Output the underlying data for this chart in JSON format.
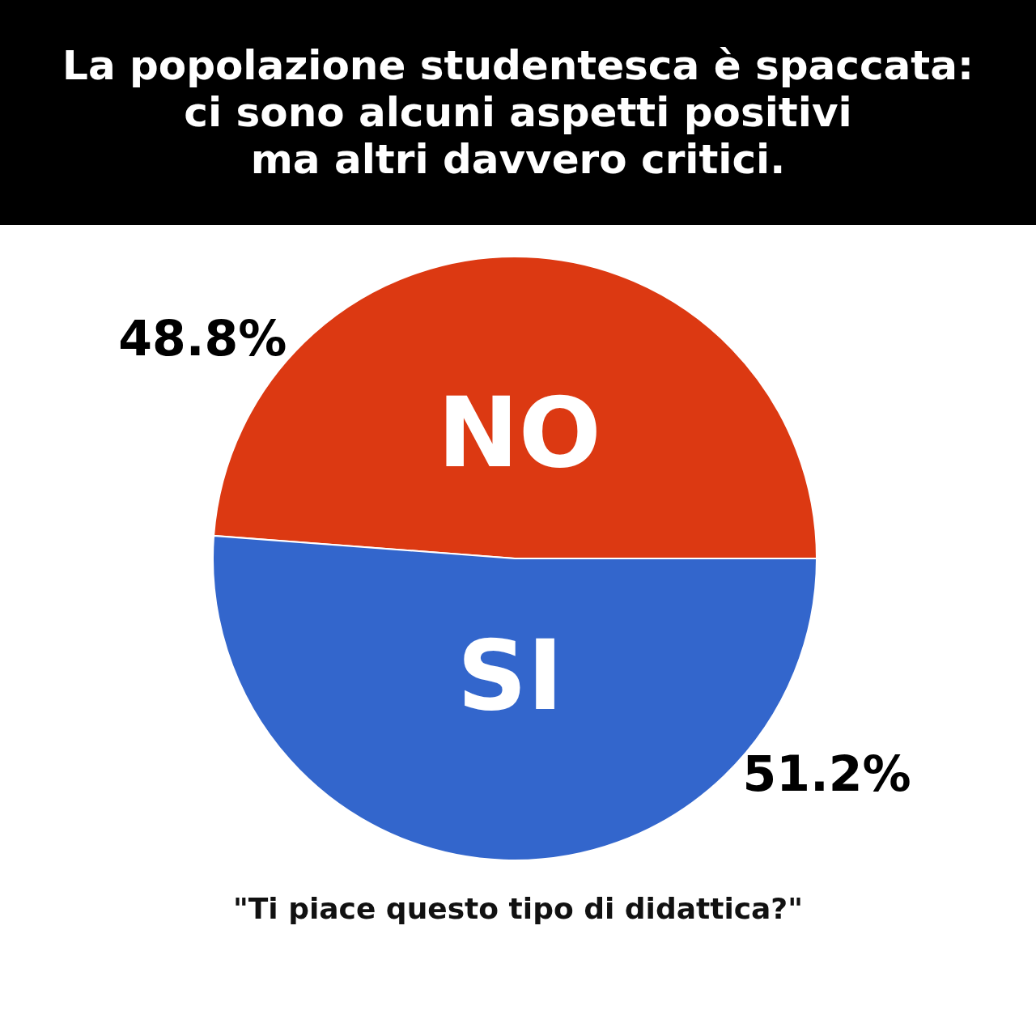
{
  "chart_data": {
    "type": "pie",
    "title": "La popolazione studentesca è spaccata:\nci sono alcuni aspetti positivi\nma altri davvero critici.",
    "categories": [
      "NO",
      "SI"
    ],
    "values": [
      48.8,
      51.2
    ],
    "colors": [
      "#dc3912",
      "#3366cc"
    ],
    "value_labels": [
      "48.8%",
      "51.2%"
    ],
    "annotations": [
      "\"Ti piace questo tipo di didattica?\""
    ]
  }
}
